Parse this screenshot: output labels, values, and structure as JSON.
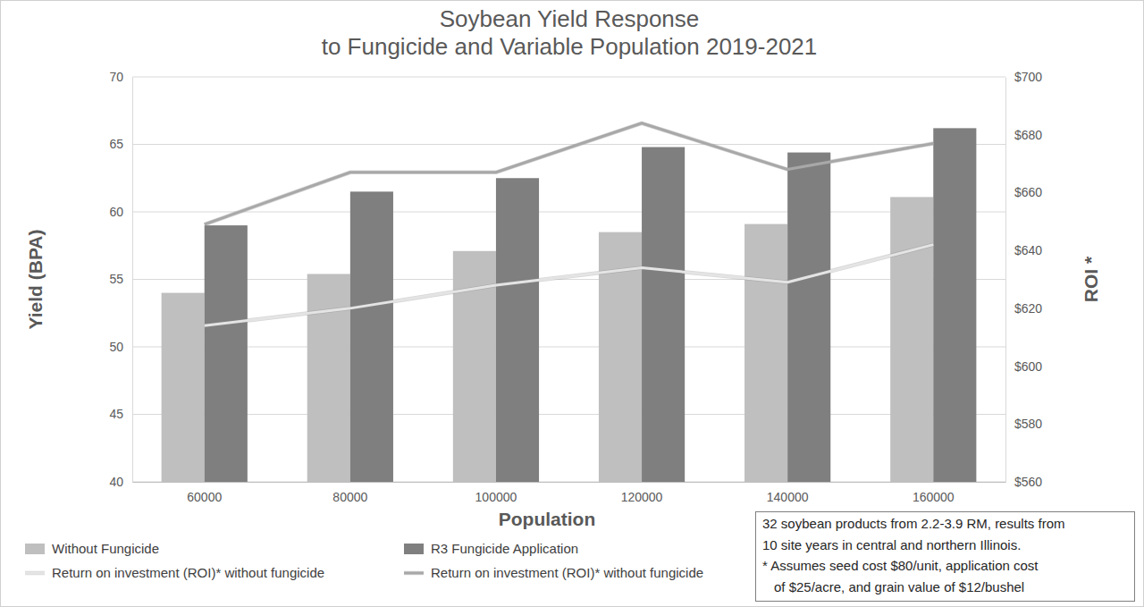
{
  "chart_data": {
    "type": "bar",
    "title": "Soybean Yield Response\nto Fungicide and Variable Population 2019-2021",
    "xlabel": "Population",
    "ylabel": "Yield (BPA)",
    "y2label": "ROI *",
    "categories": [
      "60000",
      "80000",
      "100000",
      "120000",
      "140000",
      "160000"
    ],
    "series": [
      {
        "name": "Without Fungicide",
        "type": "bar",
        "color": "#bfbfbf",
        "values": [
          54.0,
          55.4,
          57.1,
          58.5,
          59.1,
          61.1
        ]
      },
      {
        "name": "R3 Fungicide Application",
        "type": "bar",
        "color": "#7f7f7f",
        "values": [
          59.0,
          61.5,
          62.5,
          64.8,
          64.4,
          66.2
        ]
      },
      {
        "name": "Return on investment (ROI)* without fungicide",
        "type": "line",
        "axis": "y2",
        "color": "#e4e4e4",
        "values": [
          614,
          620,
          628,
          634,
          629,
          642
        ]
      },
      {
        "name": "Return on investment (ROI)* without fungicide",
        "type": "line",
        "axis": "y2",
        "color": "#a8a8a8",
        "values": [
          649,
          667,
          667,
          684,
          668,
          677
        ]
      }
    ],
    "ylim": [
      40,
      70
    ],
    "yticks": [
      40,
      45,
      50,
      55,
      60,
      65,
      70
    ],
    "y2lim": [
      560,
      700
    ],
    "y2ticks": [
      {
        "value": 560,
        "label": "$560"
      },
      {
        "value": 580,
        "label": "$580"
      },
      {
        "value": 600,
        "label": "$600"
      },
      {
        "value": 620,
        "label": "$620"
      },
      {
        "value": 640,
        "label": "$640"
      },
      {
        "value": 660,
        "label": "$660"
      },
      {
        "value": 680,
        "label": "$680"
      },
      {
        "value": 700,
        "label": "$700"
      }
    ],
    "grid": true,
    "legend": "bottom",
    "annotations": [
      "32 soybean products from 2.2-3.9 RM, results from",
      "10 site years in central and northern Illinois.",
      "* Assumes seed cost $80/unit, application cost",
      "of $25/acre, and grain value of $12/bushel"
    ]
  }
}
